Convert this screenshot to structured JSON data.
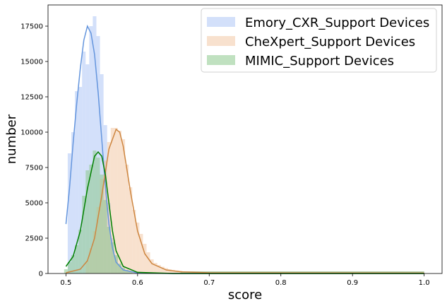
{
  "chart_data": {
    "type": "bar",
    "xlabel": "score",
    "ylabel": "number",
    "xlim": [
      0.475,
      1.025
    ],
    "ylim": [
      0,
      19000
    ],
    "x_ticks": [
      0.5,
      0.6,
      0.7,
      0.8,
      0.9,
      1.0
    ],
    "x_tick_labels": [
      "0.5",
      "0.6",
      "0.7",
      "0.8",
      "0.9",
      "1.0"
    ],
    "y_ticks": [
      0,
      2500,
      5000,
      7500,
      10000,
      12500,
      15000,
      17500
    ],
    "y_tick_labels": [
      "0",
      "2500",
      "5000",
      "7500",
      "10000",
      "12500",
      "15000",
      "17500"
    ],
    "grid": false,
    "legend_position": "top-right",
    "series": [
      {
        "name": "Emory_CXR_Support Devices",
        "hist_color": "#aec7f5",
        "line_color": "#6495dd",
        "bins": [
          {
            "x": 0.505,
            "y": 8500
          },
          {
            "x": 0.51,
            "y": 10000
          },
          {
            "x": 0.515,
            "y": 12900
          },
          {
            "x": 0.52,
            "y": 13200
          },
          {
            "x": 0.525,
            "y": 15700
          },
          {
            "x": 0.53,
            "y": 14800
          },
          {
            "x": 0.535,
            "y": 17500
          },
          {
            "x": 0.54,
            "y": 18200
          },
          {
            "x": 0.545,
            "y": 16800
          },
          {
            "x": 0.55,
            "y": 14100
          },
          {
            "x": 0.555,
            "y": 10500
          },
          {
            "x": 0.56,
            "y": 5000
          },
          {
            "x": 0.565,
            "y": 2500
          },
          {
            "x": 0.57,
            "y": 1200
          },
          {
            "x": 0.575,
            "y": 600
          },
          {
            "x": 0.58,
            "y": 350
          },
          {
            "x": 0.585,
            "y": 200
          },
          {
            "x": 0.59,
            "y": 120
          },
          {
            "x": 0.595,
            "y": 80
          }
        ],
        "kde": [
          {
            "x": 0.5,
            "y": 3500
          },
          {
            "x": 0.505,
            "y": 6000
          },
          {
            "x": 0.51,
            "y": 9200
          },
          {
            "x": 0.515,
            "y": 12000
          },
          {
            "x": 0.52,
            "y": 14500
          },
          {
            "x": 0.525,
            "y": 16500
          },
          {
            "x": 0.53,
            "y": 17500
          },
          {
            "x": 0.535,
            "y": 17000
          },
          {
            "x": 0.54,
            "y": 15500
          },
          {
            "x": 0.545,
            "y": 12800
          },
          {
            "x": 0.55,
            "y": 9500
          },
          {
            "x": 0.555,
            "y": 6200
          },
          {
            "x": 0.56,
            "y": 3500
          },
          {
            "x": 0.565,
            "y": 1800
          },
          {
            "x": 0.57,
            "y": 800
          },
          {
            "x": 0.58,
            "y": 250
          },
          {
            "x": 0.6,
            "y": 40
          },
          {
            "x": 0.65,
            "y": 0
          },
          {
            "x": 1.0,
            "y": 0
          }
        ]
      },
      {
        "name": "CheXpert_Support Devices",
        "hist_color": "#f2c9a6",
        "line_color": "#cd853f",
        "bins": [
          {
            "x": 0.53,
            "y": 900
          },
          {
            "x": 0.535,
            "y": 1800
          },
          {
            "x": 0.54,
            "y": 3000
          },
          {
            "x": 0.545,
            "y": 4700
          },
          {
            "x": 0.55,
            "y": 6700
          },
          {
            "x": 0.555,
            "y": 8000
          },
          {
            "x": 0.56,
            "y": 9300
          },
          {
            "x": 0.565,
            "y": 10300
          },
          {
            "x": 0.57,
            "y": 10300
          },
          {
            "x": 0.575,
            "y": 10100
          },
          {
            "x": 0.58,
            "y": 9500
          },
          {
            "x": 0.585,
            "y": 7700
          },
          {
            "x": 0.59,
            "y": 6100
          },
          {
            "x": 0.595,
            "y": 4500
          },
          {
            "x": 0.6,
            "y": 3600
          },
          {
            "x": 0.605,
            "y": 2800
          },
          {
            "x": 0.61,
            "y": 2100
          },
          {
            "x": 0.615,
            "y": 1500
          },
          {
            "x": 0.62,
            "y": 1000
          },
          {
            "x": 0.625,
            "y": 750
          },
          {
            "x": 0.63,
            "y": 600
          },
          {
            "x": 0.635,
            "y": 480
          },
          {
            "x": 0.64,
            "y": 380
          },
          {
            "x": 0.645,
            "y": 300
          },
          {
            "x": 0.65,
            "y": 250
          },
          {
            "x": 0.655,
            "y": 220
          },
          {
            "x": 0.66,
            "y": 200
          }
        ],
        "kde": [
          {
            "x": 0.5,
            "y": 50
          },
          {
            "x": 0.52,
            "y": 300
          },
          {
            "x": 0.53,
            "y": 900
          },
          {
            "x": 0.54,
            "y": 2500
          },
          {
            "x": 0.55,
            "y": 5500
          },
          {
            "x": 0.56,
            "y": 8800
          },
          {
            "x": 0.57,
            "y": 10200
          },
          {
            "x": 0.575,
            "y": 10000
          },
          {
            "x": 0.58,
            "y": 9000
          },
          {
            "x": 0.59,
            "y": 5800
          },
          {
            "x": 0.6,
            "y": 3000
          },
          {
            "x": 0.61,
            "y": 1400
          },
          {
            "x": 0.62,
            "y": 700
          },
          {
            "x": 0.64,
            "y": 250
          },
          {
            "x": 0.66,
            "y": 120
          },
          {
            "x": 0.7,
            "y": 50
          },
          {
            "x": 1.0,
            "y": 30
          }
        ]
      },
      {
        "name": "MIMIC_Support Devices",
        "hist_color": "#8cc98c",
        "line_color": "#008000",
        "bins": [
          {
            "x": 0.5,
            "y": 300
          },
          {
            "x": 0.505,
            "y": 800
          },
          {
            "x": 0.51,
            "y": 1300
          },
          {
            "x": 0.515,
            "y": 2000
          },
          {
            "x": 0.52,
            "y": 3100
          },
          {
            "x": 0.525,
            "y": 5500
          },
          {
            "x": 0.53,
            "y": 7300
          },
          {
            "x": 0.535,
            "y": 7700
          },
          {
            "x": 0.54,
            "y": 8700
          },
          {
            "x": 0.545,
            "y": 8200
          },
          {
            "x": 0.55,
            "y": 7000
          },
          {
            "x": 0.555,
            "y": 5200
          },
          {
            "x": 0.56,
            "y": 3300
          },
          {
            "x": 0.565,
            "y": 2200
          },
          {
            "x": 0.57,
            "y": 1300
          },
          {
            "x": 0.575,
            "y": 700
          },
          {
            "x": 0.58,
            "y": 400
          },
          {
            "x": 0.585,
            "y": 250
          },
          {
            "x": 0.59,
            "y": 150
          }
        ],
        "kde": [
          {
            "x": 0.5,
            "y": 500
          },
          {
            "x": 0.51,
            "y": 1200
          },
          {
            "x": 0.52,
            "y": 3000
          },
          {
            "x": 0.53,
            "y": 6000
          },
          {
            "x": 0.54,
            "y": 8300
          },
          {
            "x": 0.545,
            "y": 8600
          },
          {
            "x": 0.55,
            "y": 8300
          },
          {
            "x": 0.555,
            "y": 7000
          },
          {
            "x": 0.56,
            "y": 5000
          },
          {
            "x": 0.565,
            "y": 3000
          },
          {
            "x": 0.57,
            "y": 1600
          },
          {
            "x": 0.58,
            "y": 500
          },
          {
            "x": 0.6,
            "y": 80
          },
          {
            "x": 0.65,
            "y": 0
          },
          {
            "x": 1.0,
            "y": 0
          }
        ]
      }
    ],
    "tail_bins": {
      "from": 0.66,
      "to": 1.0,
      "y": 150
    }
  }
}
